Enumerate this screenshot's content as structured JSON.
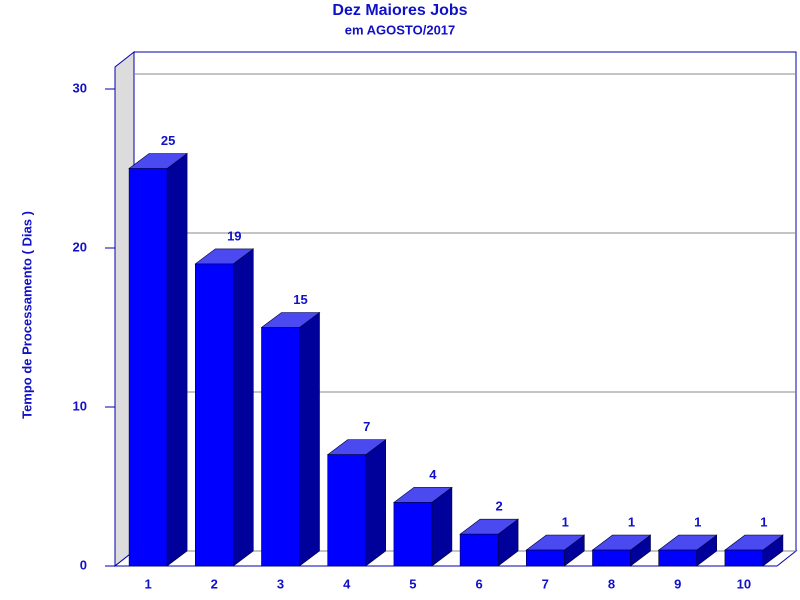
{
  "chart_data": {
    "type": "bar3d",
    "title": "Dez Maiores Jobs",
    "subtitle": "em AGOSTO/2017",
    "y_label": "Tempo de Processamento ( Dias )",
    "categories": [
      "1",
      "2",
      "3",
      "4",
      "5",
      "6",
      "7",
      "8",
      "9",
      "10"
    ],
    "values": [
      25,
      19,
      15,
      7,
      4,
      2,
      1,
      1,
      1,
      1
    ],
    "color": "#0000ff",
    "ylim": [
      0,
      30
    ],
    "yticks": [
      0,
      10,
      20,
      30
    ],
    "grid": true
  }
}
